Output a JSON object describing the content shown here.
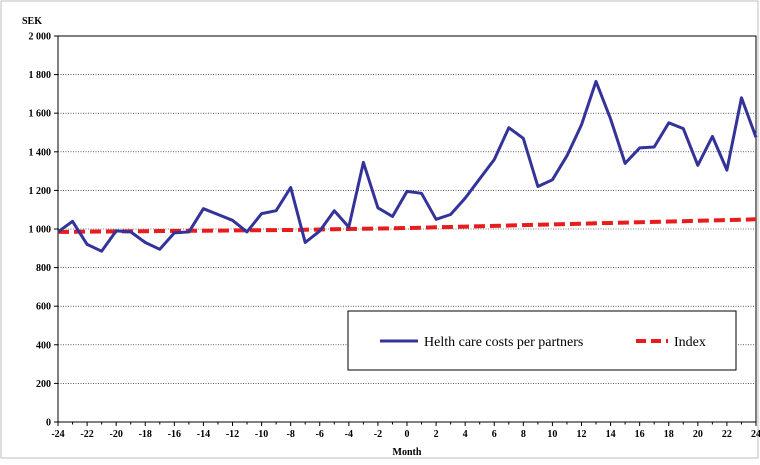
{
  "chart_data": {
    "type": "line",
    "title": "",
    "xlabel": "Month",
    "ylabel": "SEK",
    "xlim": [
      -24,
      24
    ],
    "ylim": [
      0,
      2000
    ],
    "xticks": [
      -24,
      -22,
      -20,
      -18,
      -16,
      -14,
      -12,
      -10,
      -8,
      -6,
      -4,
      -2,
      0,
      2,
      4,
      6,
      8,
      10,
      12,
      14,
      16,
      18,
      20,
      22,
      24
    ],
    "yticks": [
      0,
      200,
      400,
      600,
      800,
      1000,
      1200,
      1400,
      1600,
      1800,
      2000
    ],
    "ytick_labels": [
      "0",
      "200",
      "400",
      "600",
      "800",
      "1 000",
      "1 200",
      "1 400",
      "1 600",
      "1 800",
      "2 000"
    ],
    "grid": "horizontal",
    "legend_position": "bottom-right",
    "x": [
      -24,
      -23,
      -22,
      -21,
      -20,
      -19,
      -18,
      -17,
      -16,
      -15,
      -14,
      -13,
      -12,
      -11,
      -10,
      -9,
      -8,
      -7,
      -6,
      -5,
      -4,
      -3,
      -2,
      -1,
      0,
      1,
      2,
      3,
      4,
      5,
      6,
      7,
      8,
      9,
      10,
      11,
      12,
      13,
      14,
      15,
      16,
      17,
      18,
      19,
      20,
      21,
      22,
      23,
      24
    ],
    "series": [
      {
        "name": "Helth care costs per partners",
        "color": "#333399",
        "style": "solid",
        "values": [
          985,
          1040,
          920,
          885,
          990,
          985,
          930,
          895,
          980,
          985,
          1105,
          1075,
          1045,
          985,
          1080,
          1095,
          1215,
          930,
          990,
          1095,
          1010,
          1345,
          1110,
          1065,
          1195,
          1185,
          1050,
          1075,
          1160,
          1260,
          1360,
          1525,
          1470,
          1220,
          1255,
          1380,
          1540,
          1765,
          1570,
          1340,
          1420,
          1425,
          1550,
          1520,
          1330,
          1480,
          1305,
          1680,
          1475
        ]
      },
      {
        "name": "Index",
        "color": "#e81c1c",
        "style": "dashed",
        "values": [
          985,
          985.6,
          986.3,
          987,
          987.5,
          988.1,
          988.8,
          989.4,
          990,
          990.6,
          991.3,
          991.9,
          992.5,
          993.1,
          993.8,
          994.4,
          995,
          996.3,
          997.5,
          998.8,
          1000,
          1001.3,
          1002.5,
          1003.8,
          1005,
          1006.9,
          1008.8,
          1010.6,
          1012.5,
          1014.4,
          1016.3,
          1018.1,
          1020,
          1021.9,
          1023.8,
          1025.6,
          1027.5,
          1029.4,
          1031.3,
          1033.1,
          1035,
          1036.9,
          1038.8,
          1040.6,
          1042.5,
          1044.4,
          1046.3,
          1048.1,
          1050
        ]
      }
    ]
  }
}
